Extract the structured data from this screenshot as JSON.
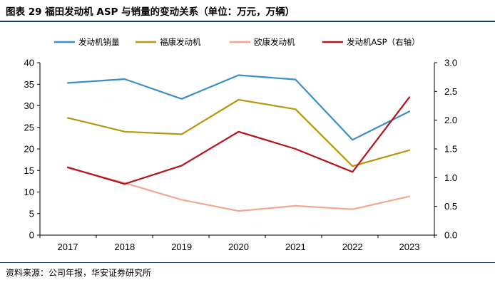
{
  "header": {
    "title": "图表 29  福田发动机 ASP 与销量的变动关系（单位：万元，万辆）"
  },
  "footer": {
    "source": "资料来源：公司年报，华安证券研究所"
  },
  "chart_data": {
    "type": "line",
    "title": "图表 29  福田发动机 ASP 与销量的变动关系（单位：万元，万辆）",
    "categories": [
      "2017",
      "2018",
      "2019",
      "2020",
      "2021",
      "2022",
      "2023"
    ],
    "y_left": {
      "min": 0,
      "max": 40,
      "step": 5,
      "ticks": [
        "0",
        "5",
        "10",
        "15",
        "20",
        "25",
        "30",
        "35",
        "40"
      ]
    },
    "y_right": {
      "min": 0,
      "max": 3.0,
      "step": 0.5,
      "ticks": [
        "0.0",
        "0.5",
        "1.0",
        "1.5",
        "2.0",
        "2.5",
        "3.0"
      ]
    },
    "legend_position": "top",
    "grid": false,
    "series": [
      {
        "name": "发动机销量",
        "axis": "left",
        "color": "#3b8fc4",
        "values": [
          35.3,
          36.2,
          31.6,
          37.1,
          36.1,
          22.1,
          28.7
        ]
      },
      {
        "name": "福康发动机",
        "axis": "left",
        "color": "#b8970f",
        "values": [
          27.2,
          24.0,
          23.4,
          31.4,
          29.2,
          16.0,
          19.7
        ]
      },
      {
        "name": "欧康发动机",
        "axis": "left",
        "color": "#f2a791",
        "values": [
          15.6,
          12.1,
          8.2,
          5.6,
          6.8,
          6.0,
          9.0
        ]
      },
      {
        "name": "发动机ASP（右轴）",
        "axis": "right",
        "color": "#b5121b",
        "values": [
          1.18,
          0.89,
          1.21,
          1.8,
          1.5,
          1.1,
          2.4
        ]
      }
    ]
  }
}
